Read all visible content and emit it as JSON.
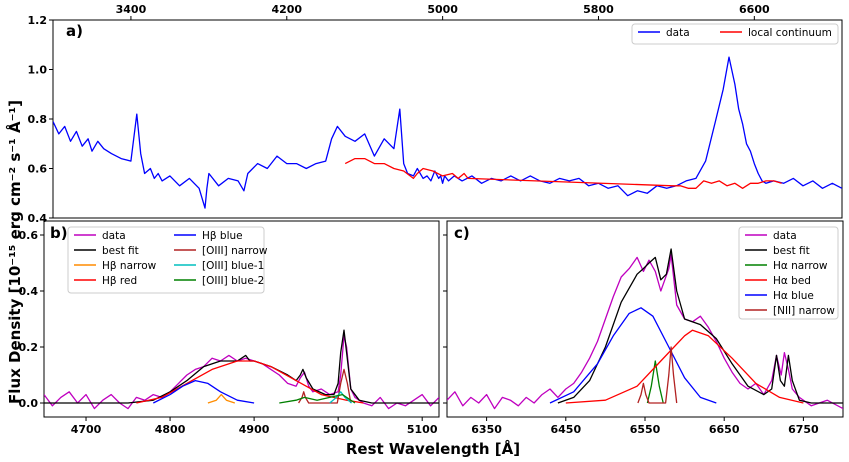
{
  "axis_labels": {
    "y_shared": "Flux Density [10⁻¹⁵ erg cm⁻² s⁻¹ Å⁻¹]",
    "x_shared": "Rest Wavelength [Å]"
  },
  "chart_data": [
    {
      "type": "line",
      "panel_label": "a)",
      "top_axis_ticks": [
        "3400",
        "4200",
        "5000",
        "5800",
        "6600"
      ],
      "top_axis_range": [
        3000,
        7050
      ],
      "ylim": [
        0.4,
        1.2
      ],
      "y_ticks": [
        "0.4",
        "0.6",
        "0.8",
        "1.0",
        "1.2"
      ],
      "grid": false,
      "legend_position": "top-right",
      "series": [
        {
          "name": "data",
          "color": "#0000ff",
          "x": [
            3000,
            3030,
            3060,
            3090,
            3120,
            3150,
            3180,
            3200,
            3230,
            3260,
            3300,
            3350,
            3400,
            3430,
            3450,
            3470,
            3500,
            3520,
            3540,
            3560,
            3600,
            3650,
            3700,
            3750,
            3780,
            3790,
            3800,
            3850,
            3900,
            3950,
            3980,
            4000,
            4050,
            4100,
            4150,
            4200,
            4250,
            4300,
            4350,
            4400,
            4430,
            4460,
            4500,
            4550,
            4600,
            4650,
            4700,
            4750,
            4780,
            4800,
            4820,
            4850,
            4870,
            4900,
            4920,
            4940,
            4960,
            4980,
            4990,
            5000,
            5010,
            5030,
            5060,
            5100,
            5150,
            5200,
            5250,
            5300,
            5350,
            5400,
            5450,
            5500,
            5550,
            5600,
            5650,
            5700,
            5750,
            5800,
            5850,
            5900,
            5950,
            6000,
            6050,
            6100,
            6150,
            6200,
            6250,
            6300,
            6350,
            6400,
            6440,
            6470,
            6500,
            6520,
            6540,
            6560,
            6580,
            6600,
            6620,
            6640,
            6660,
            6700,
            6750,
            6800,
            6850,
            6900,
            6950,
            7000,
            7050
          ],
          "y": [
            0.79,
            0.74,
            0.77,
            0.71,
            0.75,
            0.69,
            0.72,
            0.67,
            0.71,
            0.68,
            0.66,
            0.64,
            0.63,
            0.82,
            0.66,
            0.58,
            0.6,
            0.56,
            0.58,
            0.55,
            0.57,
            0.53,
            0.56,
            0.52,
            0.44,
            0.52,
            0.58,
            0.53,
            0.56,
            0.55,
            0.51,
            0.58,
            0.62,
            0.6,
            0.65,
            0.62,
            0.62,
            0.6,
            0.62,
            0.63,
            0.72,
            0.77,
            0.73,
            0.71,
            0.74,
            0.65,
            0.72,
            0.68,
            0.84,
            0.62,
            0.58,
            0.57,
            0.6,
            0.56,
            0.57,
            0.55,
            0.59,
            0.56,
            0.57,
            0.54,
            0.57,
            0.55,
            0.57,
            0.55,
            0.57,
            0.54,
            0.56,
            0.55,
            0.57,
            0.55,
            0.57,
            0.55,
            0.54,
            0.56,
            0.55,
            0.56,
            0.53,
            0.54,
            0.52,
            0.53,
            0.49,
            0.51,
            0.5,
            0.53,
            0.52,
            0.53,
            0.55,
            0.56,
            0.63,
            0.79,
            0.92,
            1.05,
            0.94,
            0.84,
            0.78,
            0.7,
            0.67,
            0.62,
            0.58,
            0.55,
            0.54,
            0.55,
            0.54,
            0.56,
            0.53,
            0.55,
            0.52,
            0.54,
            0.52
          ]
        },
        {
          "name": "local continuum",
          "color": "#ff0000",
          "x": [
            4500,
            4550,
            4600,
            4650,
            4700,
            4750,
            4800,
            4850,
            4870,
            4900,
            4950,
            5000,
            5050,
            5080,
            5110,
            5130,
            6180,
            6220,
            6260,
            6300,
            6340,
            6380,
            6420,
            6460,
            6500,
            6540,
            6580,
            6620,
            6660,
            6700,
            6740
          ],
          "y": [
            0.62,
            0.64,
            0.64,
            0.62,
            0.62,
            0.6,
            0.59,
            0.56,
            0.58,
            0.6,
            0.59,
            0.57,
            0.58,
            0.56,
            0.58,
            0.56,
            0.53,
            0.53,
            0.52,
            0.52,
            0.55,
            0.54,
            0.55,
            0.53,
            0.54,
            0.52,
            0.54,
            0.54,
            0.55,
            0.55,
            0.54
          ]
        }
      ]
    },
    {
      "type": "line",
      "panel_label": "b)",
      "xlim": [
        4650,
        5120
      ],
      "x_ticks": [
        "4700",
        "4800",
        "4900",
        "5000",
        "5100"
      ],
      "ylim": [
        -0.05,
        0.65
      ],
      "y_ticks": [
        "0.0",
        "0.2",
        "0.4",
        "0.6"
      ],
      "grid": false,
      "legend_position": "top-left",
      "series": [
        {
          "name": "data",
          "color": "#bf00bf",
          "x": [
            4650,
            4660,
            4670,
            4680,
            4690,
            4700,
            4710,
            4720,
            4730,
            4740,
            4750,
            4760,
            4770,
            4780,
            4790,
            4800,
            4810,
            4820,
            4830,
            4840,
            4850,
            4860,
            4870,
            4880,
            4890,
            4900,
            4910,
            4920,
            4930,
            4940,
            4950,
            4955,
            4960,
            4965,
            4970,
            4980,
            4990,
            5000,
            5003,
            5007,
            5010,
            5015,
            5020,
            5030,
            5040,
            5050,
            5060,
            5070,
            5080,
            5090,
            5100,
            5110,
            5120
          ],
          "y": [
            0.03,
            -0.01,
            0.02,
            0.04,
            0.0,
            0.03,
            -0.02,
            0.01,
            0.03,
            0.0,
            -0.02,
            0.02,
            0.01,
            0.03,
            0.02,
            0.04,
            0.07,
            0.1,
            0.12,
            0.13,
            0.16,
            0.15,
            0.17,
            0.15,
            0.16,
            0.15,
            0.14,
            0.12,
            0.1,
            0.07,
            0.06,
            0.09,
            0.11,
            0.06,
            0.04,
            0.05,
            0.03,
            0.04,
            0.1,
            0.24,
            0.2,
            0.05,
            0.02,
            0.0,
            -0.01,
            0.02,
            -0.02,
            0.0,
            -0.01,
            0.01,
            0.03,
            -0.01,
            0.02
          ]
        },
        {
          "name": "best fit",
          "color": "#000000",
          "x": [
            4650,
            4750,
            4780,
            4800,
            4820,
            4840,
            4860,
            4880,
            4890,
            4895,
            4900,
            4920,
            4940,
            4950,
            4955,
            4958,
            4962,
            4970,
            4985,
            4995,
            5000,
            5003,
            5007,
            5010,
            5015,
            5025,
            5040,
            5120
          ],
          "y": [
            0.0,
            0.0,
            0.01,
            0.04,
            0.08,
            0.13,
            0.15,
            0.15,
            0.17,
            0.15,
            0.15,
            0.13,
            0.1,
            0.08,
            0.1,
            0.12,
            0.09,
            0.05,
            0.03,
            0.03,
            0.07,
            0.18,
            0.26,
            0.18,
            0.05,
            0.01,
            0.0,
            0.0
          ]
        },
        {
          "name": "Hβ narrow",
          "color": "#ff8c00",
          "x": [
            4845,
            4855,
            4861,
            4867,
            4877
          ],
          "y": [
            0.0,
            0.01,
            0.03,
            0.01,
            0.0
          ]
        },
        {
          "name": "Hβ red",
          "color": "#ff0000",
          "x": [
            4760,
            4790,
            4820,
            4850,
            4880,
            4900,
            4920,
            4950,
            4980,
            5010,
            5030
          ],
          "y": [
            0.0,
            0.02,
            0.07,
            0.12,
            0.15,
            0.15,
            0.13,
            0.08,
            0.03,
            0.01,
            0.0
          ]
        },
        {
          "name": "Hβ blue",
          "color": "#0000ff",
          "x": [
            4780,
            4800,
            4815,
            4830,
            4845,
            4860,
            4880,
            4900
          ],
          "y": [
            0.0,
            0.03,
            0.06,
            0.08,
            0.07,
            0.04,
            0.01,
            0.0
          ]
        },
        {
          "name": "[OIII] narrow",
          "color": "#b22222",
          "x": [
            4953,
            4957,
            4959,
            4961,
            4965,
            4999,
            5003,
            5007,
            5011,
            5015
          ],
          "y": [
            0.0,
            0.02,
            0.04,
            0.02,
            0.0,
            0.0,
            0.07,
            0.12,
            0.07,
            0.0
          ]
        },
        {
          "name": "[OIII] blue-1",
          "color": "#00bfbf",
          "x": [
            4990,
            4998,
            5003,
            5008,
            5016
          ],
          "y": [
            0.0,
            0.02,
            0.04,
            0.02,
            0.0
          ]
        },
        {
          "name": "[OIII] blue-2",
          "color": "#008000",
          "x": [
            4930,
            4950,
            4960,
            4975,
            4990,
            5005,
            5020
          ],
          "y": [
            0.0,
            0.01,
            0.02,
            0.01,
            0.02,
            0.03,
            0.0
          ]
        }
      ]
    },
    {
      "type": "line",
      "panel_label": "c)",
      "xlim": [
        6300,
        6800
      ],
      "x_ticks": [
        "6350",
        "6450",
        "6550",
        "6650",
        "6750"
      ],
      "ylim": [
        -0.05,
        0.65
      ],
      "grid": false,
      "legend_position": "top-right",
      "series": [
        {
          "name": "data",
          "color": "#bf00bf",
          "x": [
            6300,
            6310,
            6320,
            6330,
            6340,
            6350,
            6360,
            6370,
            6380,
            6390,
            6400,
            6410,
            6420,
            6430,
            6440,
            6450,
            6460,
            6470,
            6480,
            6490,
            6500,
            6510,
            6520,
            6530,
            6540,
            6548,
            6555,
            6563,
            6570,
            6575,
            6580,
            6583,
            6590,
            6600,
            6610,
            6620,
            6630,
            6640,
            6650,
            6660,
            6670,
            6680,
            6690,
            6700,
            6710,
            6716,
            6722,
            6726,
            6731,
            6736,
            6745,
            6760,
            6780,
            6800
          ],
          "y": [
            0.01,
            0.04,
            -0.01,
            0.02,
            0.0,
            0.03,
            -0.02,
            0.02,
            0.01,
            -0.01,
            0.02,
            0.0,
            0.03,
            0.05,
            0.02,
            0.05,
            0.07,
            0.11,
            0.16,
            0.22,
            0.3,
            0.38,
            0.45,
            0.48,
            0.52,
            0.47,
            0.51,
            0.47,
            0.4,
            0.44,
            0.48,
            0.53,
            0.35,
            0.3,
            0.29,
            0.31,
            0.27,
            0.22,
            0.16,
            0.11,
            0.07,
            0.05,
            0.07,
            0.03,
            0.08,
            0.17,
            0.1,
            0.18,
            0.12,
            0.05,
            0.02,
            -0.01,
            0.01,
            -0.02
          ]
        },
        {
          "name": "best fit",
          "color": "#000000",
          "x": [
            6440,
            6460,
            6480,
            6500,
            6520,
            6540,
            6548,
            6555,
            6563,
            6570,
            6577,
            6583,
            6590,
            6600,
            6620,
            6640,
            6660,
            6680,
            6700,
            6710,
            6716,
            6721,
            6726,
            6731,
            6736,
            6745,
            6760,
            6800
          ],
          "y": [
            0.0,
            0.02,
            0.08,
            0.2,
            0.36,
            0.46,
            0.48,
            0.5,
            0.52,
            0.44,
            0.46,
            0.55,
            0.4,
            0.3,
            0.28,
            0.23,
            0.14,
            0.06,
            0.03,
            0.05,
            0.17,
            0.08,
            0.06,
            0.17,
            0.08,
            0.01,
            0.0,
            0.0
          ]
        },
        {
          "name": "Hα narrow",
          "color": "#008000",
          "x": [
            6553,
            6558,
            6563,
            6568,
            6573
          ],
          "y": [
            0.0,
            0.06,
            0.15,
            0.06,
            0.0
          ]
        },
        {
          "name": "Hα bed",
          "color": "#ff0000",
          "x": [
            6450,
            6500,
            6540,
            6570,
            6600,
            6610,
            6630,
            6660,
            6690,
            6720,
            6750
          ],
          "y": [
            0.0,
            0.01,
            0.06,
            0.15,
            0.24,
            0.26,
            0.24,
            0.16,
            0.07,
            0.02,
            0.0
          ]
        },
        {
          "name": "Hα blue",
          "color": "#0000ff",
          "x": [
            6430,
            6460,
            6490,
            6510,
            6530,
            6545,
            6560,
            6580,
            6600,
            6620,
            6640
          ],
          "y": [
            0.0,
            0.04,
            0.14,
            0.24,
            0.32,
            0.34,
            0.31,
            0.2,
            0.09,
            0.02,
            0.0
          ]
        },
        {
          "name": "[NII] narrow",
          "color": "#b22222",
          "x": [
            6541,
            6545,
            6548,
            6551,
            6555,
            6576,
            6580,
            6583,
            6586,
            6590
          ],
          "y": [
            0.0,
            0.03,
            0.07,
            0.03,
            0.0,
            0.0,
            0.1,
            0.2,
            0.1,
            0.0
          ]
        }
      ]
    }
  ]
}
